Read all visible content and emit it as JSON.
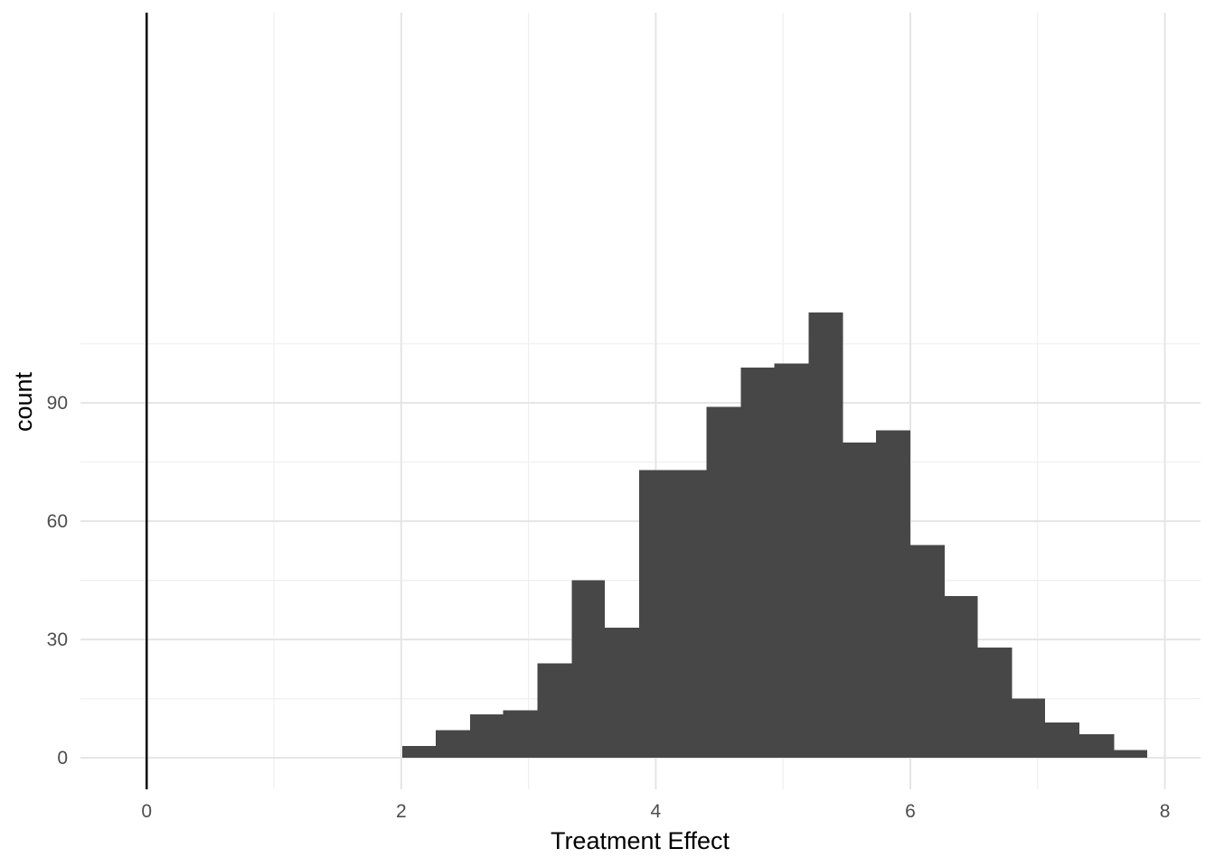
{
  "chart_data": {
    "type": "bar",
    "histogram": true,
    "title": "",
    "xlabel": "Treatment Effect",
    "ylabel": "count",
    "xlim": [
      -0.52,
      8.28
    ],
    "ylim": [
      -8,
      189
    ],
    "x_ticks": [
      0,
      2,
      4,
      6,
      8
    ],
    "x_tick_labels": [
      "0",
      "2",
      "4",
      "6",
      "8"
    ],
    "y_ticks": [
      0,
      30,
      60,
      90
    ],
    "y_tick_labels": [
      "0",
      "30",
      "60",
      "90"
    ],
    "grid": true,
    "legend": "none",
    "reference_line_x": 0,
    "bins": [
      {
        "x0": 2.01,
        "x1": 2.27,
        "count": 3
      },
      {
        "x0": 2.27,
        "x1": 2.54,
        "count": 7
      },
      {
        "x0": 2.54,
        "x1": 2.8,
        "count": 11
      },
      {
        "x0": 2.8,
        "x1": 3.07,
        "count": 12
      },
      {
        "x0": 3.07,
        "x1": 3.34,
        "count": 24
      },
      {
        "x0": 3.34,
        "x1": 3.6,
        "count": 45
      },
      {
        "x0": 3.6,
        "x1": 3.87,
        "count": 33
      },
      {
        "x0": 3.87,
        "x1": 4.14,
        "count": 73
      },
      {
        "x0": 4.14,
        "x1": 4.4,
        "count": 73
      },
      {
        "x0": 4.4,
        "x1": 4.67,
        "count": 89
      },
      {
        "x0": 4.67,
        "x1": 4.93,
        "count": 99
      },
      {
        "x0": 4.93,
        "x1": 5.2,
        "count": 100
      },
      {
        "x0": 5.2,
        "x1": 5.47,
        "count": 113
      },
      {
        "x0": 5.47,
        "x1": 5.73,
        "count": 80
      },
      {
        "x0": 5.73,
        "x1": 6.0,
        "count": 83
      },
      {
        "x0": 6.0,
        "x1": 6.27,
        "count": 54
      },
      {
        "x0": 6.27,
        "x1": 6.53,
        "count": 41
      },
      {
        "x0": 6.53,
        "x1": 6.8,
        "count": 28
      },
      {
        "x0": 6.8,
        "x1": 7.06,
        "count": 15
      },
      {
        "x0": 7.06,
        "x1": 7.33,
        "count": 9
      },
      {
        "x0": 7.33,
        "x1": 7.6,
        "count": 6
      },
      {
        "x0": 7.6,
        "x1": 7.86,
        "count": 2
      }
    ],
    "colors": {
      "bar": "#474747",
      "grid_major": "#e5e5e5",
      "grid_minor": "#efefef",
      "reference_line": "#000000"
    }
  }
}
